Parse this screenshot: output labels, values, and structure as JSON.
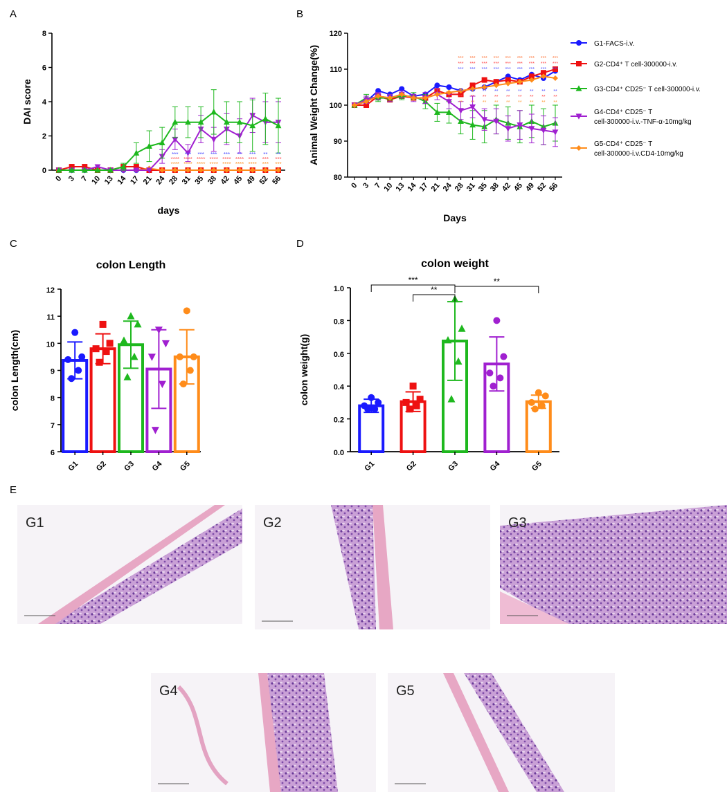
{
  "panels": {
    "a": "A",
    "b": "B",
    "c": "C",
    "d": "D",
    "e": "E"
  },
  "colors": {
    "G1": "#1a1aff",
    "G2": "#ee1111",
    "G3": "#1eb81e",
    "G4": "#a020d0",
    "G5": "#ff8c1a"
  },
  "chart_data": [
    {
      "id": "A",
      "type": "line",
      "title": "",
      "xlabel": "days",
      "ylabel": "DAI score",
      "ylim": [
        0,
        8
      ],
      "yticks": [
        0,
        2,
        4,
        6,
        8
      ],
      "categories": [
        "0",
        "3",
        "7",
        "10",
        "13",
        "14",
        "17",
        "21",
        "24",
        "28",
        "31",
        "35",
        "38",
        "42",
        "45",
        "49",
        "52",
        "56"
      ],
      "series": [
        {
          "key": "G1",
          "values": [
            0,
            0,
            0,
            0,
            0,
            0,
            0,
            0,
            0,
            0,
            0,
            0,
            0,
            0,
            0,
            0,
            0,
            0
          ]
        },
        {
          "key": "G2",
          "values": [
            0,
            0.2,
            0.2,
            0,
            0,
            0.2,
            0.2,
            0,
            0,
            0,
            0,
            0,
            0,
            0,
            0,
            0,
            0,
            0
          ]
        },
        {
          "key": "G5",
          "values": [
            0,
            0,
            0,
            0,
            0,
            0,
            0,
            0.1,
            0,
            0,
            0,
            0,
            0,
            0,
            0,
            0,
            0,
            0
          ]
        },
        {
          "key": "G4",
          "values": [
            0,
            0,
            0,
            0.2,
            0,
            0,
            0,
            0,
            0.8,
            1.8,
            1.0,
            2.4,
            1.8,
            2.4,
            2.0,
            3.2,
            2.8,
            2.8
          ],
          "err": [
            0,
            0,
            0,
            0,
            0,
            0,
            0,
            0,
            0.4,
            0.6,
            0.5,
            0.8,
            0.7,
            0.9,
            1.0,
            1.0,
            1.2,
            1.2
          ]
        },
        {
          "key": "G3",
          "values": [
            0,
            0,
            0,
            0,
            0,
            0.2,
            1.0,
            1.4,
            1.6,
            2.8,
            2.8,
            2.8,
            3.4,
            2.8,
            2.8,
            2.6,
            3.0,
            2.6
          ],
          "err": [
            0,
            0,
            0,
            0,
            0,
            0.2,
            0.6,
            0.9,
            0.9,
            0.9,
            0.9,
            0.9,
            1.3,
            1.2,
            1.2,
            1.5,
            1.5,
            1.6
          ]
        }
      ],
      "annotations": [
        "***",
        "****",
        "***",
        "****",
        "***",
        "****",
        "***",
        "****",
        "***",
        "****",
        "**",
        "****",
        "***",
        "****",
        "**",
        "***",
        "**",
        "***"
      ]
    },
    {
      "id": "B",
      "type": "line",
      "title": "",
      "xlabel": "Days",
      "ylabel": "Animal Weight Change(%)",
      "ylim": [
        80,
        120
      ],
      "yticks": [
        80,
        90,
        100,
        110,
        120
      ],
      "categories": [
        "0",
        "3",
        "7",
        "10",
        "13",
        "14",
        "17",
        "21",
        "24",
        "28",
        "31",
        "35",
        "38",
        "42",
        "45",
        "49",
        "52",
        "56"
      ],
      "series": [
        {
          "key": "G1",
          "label": "G1-FACS-i.v.",
          "values": [
            100,
            101,
            104,
            103,
            104.5,
            102.5,
            103,
            105.5,
            105,
            104,
            104.5,
            105,
            106.5,
            108,
            107,
            108.5,
            107.5,
            109.5
          ]
        },
        {
          "key": "G2",
          "label": "G2-CD4⁺ T cell-300000-i.v.",
          "values": [
            100,
            100,
            102.5,
            101.5,
            102.5,
            102,
            102,
            104,
            103,
            103,
            105.5,
            107,
            106.5,
            107,
            106.5,
            108,
            109,
            110
          ]
        },
        {
          "key": "G3",
          "label": "G3-CD4⁺ CD25⁻ T cell-300000-i.v.",
          "values": [
            100,
            102,
            102,
            102,
            102.5,
            102.5,
            101,
            98,
            98,
            95.5,
            94.5,
            94,
            96,
            95,
            94,
            95.5,
            94,
            95
          ],
          "err": [
            0,
            1,
            1,
            1,
            1,
            1,
            2,
            2.5,
            3,
            3.5,
            4,
            4.5,
            4,
            4.5,
            4.5,
            4.5,
            5,
            5
          ]
        },
        {
          "key": "G4",
          "label": "G4-CD4⁺ CD25⁻ T cell-300000-i.v.-TNF-α-10mg/kg",
          "values": [
            100,
            101.5,
            102.5,
            102,
            103,
            102,
            102,
            103,
            101,
            98.5,
            99.5,
            96,
            95.5,
            93.5,
            94.5,
            93.5,
            93,
            92.5
          ],
          "err": [
            0,
            1,
            1,
            1,
            1,
            1,
            1.5,
            1.5,
            2,
            2.5,
            3,
            3,
            3.5,
            3.5,
            4,
            4,
            4,
            4
          ]
        },
        {
          "key": "G5",
          "label": "G5-CD4⁺ CD25⁻ T cell-300000-i.v.CD4-10mg/kg",
          "values": [
            100,
            101,
            102.5,
            102,
            103,
            102,
            102,
            103,
            103.5,
            104,
            104.5,
            105,
            105.5,
            106,
            106.5,
            107,
            108,
            107.5
          ]
        }
      ]
    },
    {
      "id": "C",
      "type": "bar",
      "title": "colon Length",
      "xlabel": "",
      "ylabel": "colon Length(cm)",
      "ylim": [
        6,
        12
      ],
      "yticks": [
        6,
        7,
        8,
        9,
        10,
        11,
        12
      ],
      "categories": [
        "G1",
        "G2",
        "G3",
        "G4",
        "G5"
      ],
      "values": [
        9.37,
        9.8,
        9.95,
        9.05,
        9.5
      ],
      "err": [
        0.68,
        0.55,
        0.87,
        1.45,
        1.0
      ],
      "points": [
        [
          10.4,
          9.5,
          9.4,
          9.0,
          8.7
        ],
        [
          10.7,
          10.0,
          9.8,
          9.7,
          9.3
        ],
        [
          11.0,
          10.7,
          10.1,
          9.5,
          8.75
        ],
        [
          10.5,
          10.0,
          9.5,
          8.5,
          6.8
        ],
        [
          11.2,
          9.5,
          9.5,
          9.0,
          8.5
        ]
      ],
      "markers": [
        "circle",
        "square",
        "triangle",
        "triangle-down",
        "circle"
      ]
    },
    {
      "id": "D",
      "type": "bar",
      "title": "colon weight",
      "xlabel": "",
      "ylabel": "colon weight(g)",
      "ylim": [
        0,
        1.0
      ],
      "yticks": [
        "0.0",
        "0.2",
        "0.4",
        "0.6",
        "0.8",
        "1.0"
      ],
      "categories": [
        "G1",
        "G2",
        "G3",
        "G4",
        "G5"
      ],
      "values": [
        0.28,
        0.305,
        0.675,
        0.535,
        0.305
      ],
      "err": [
        0.04,
        0.06,
        0.24,
        0.165,
        0.04
      ],
      "points": [
        [
          0.33,
          0.3,
          0.28,
          0.26,
          0.26
        ],
        [
          0.4,
          0.32,
          0.3,
          0.28,
          0.26
        ],
        [
          0.93,
          0.75,
          0.68,
          0.55,
          0.32
        ],
        [
          0.8,
          0.58,
          0.48,
          0.45,
          0.4
        ],
        [
          0.36,
          0.34,
          0.3,
          0.28,
          0.26
        ]
      ],
      "markers": [
        "circle",
        "square",
        "triangle",
        "circle",
        "circle"
      ],
      "significance": [
        {
          "from": 0,
          "to": 2,
          "label": "***",
          "level": 1.0
        },
        {
          "from": 1,
          "to": 2,
          "label": "**",
          "level": 0.96
        },
        {
          "from": 2,
          "to": 4,
          "label": "**",
          "level": 1.0
        }
      ]
    }
  ],
  "histology": [
    {
      "label": "G1"
    },
    {
      "label": "G2"
    },
    {
      "label": "G3"
    },
    {
      "label": "G4"
    },
    {
      "label": "G5"
    }
  ]
}
